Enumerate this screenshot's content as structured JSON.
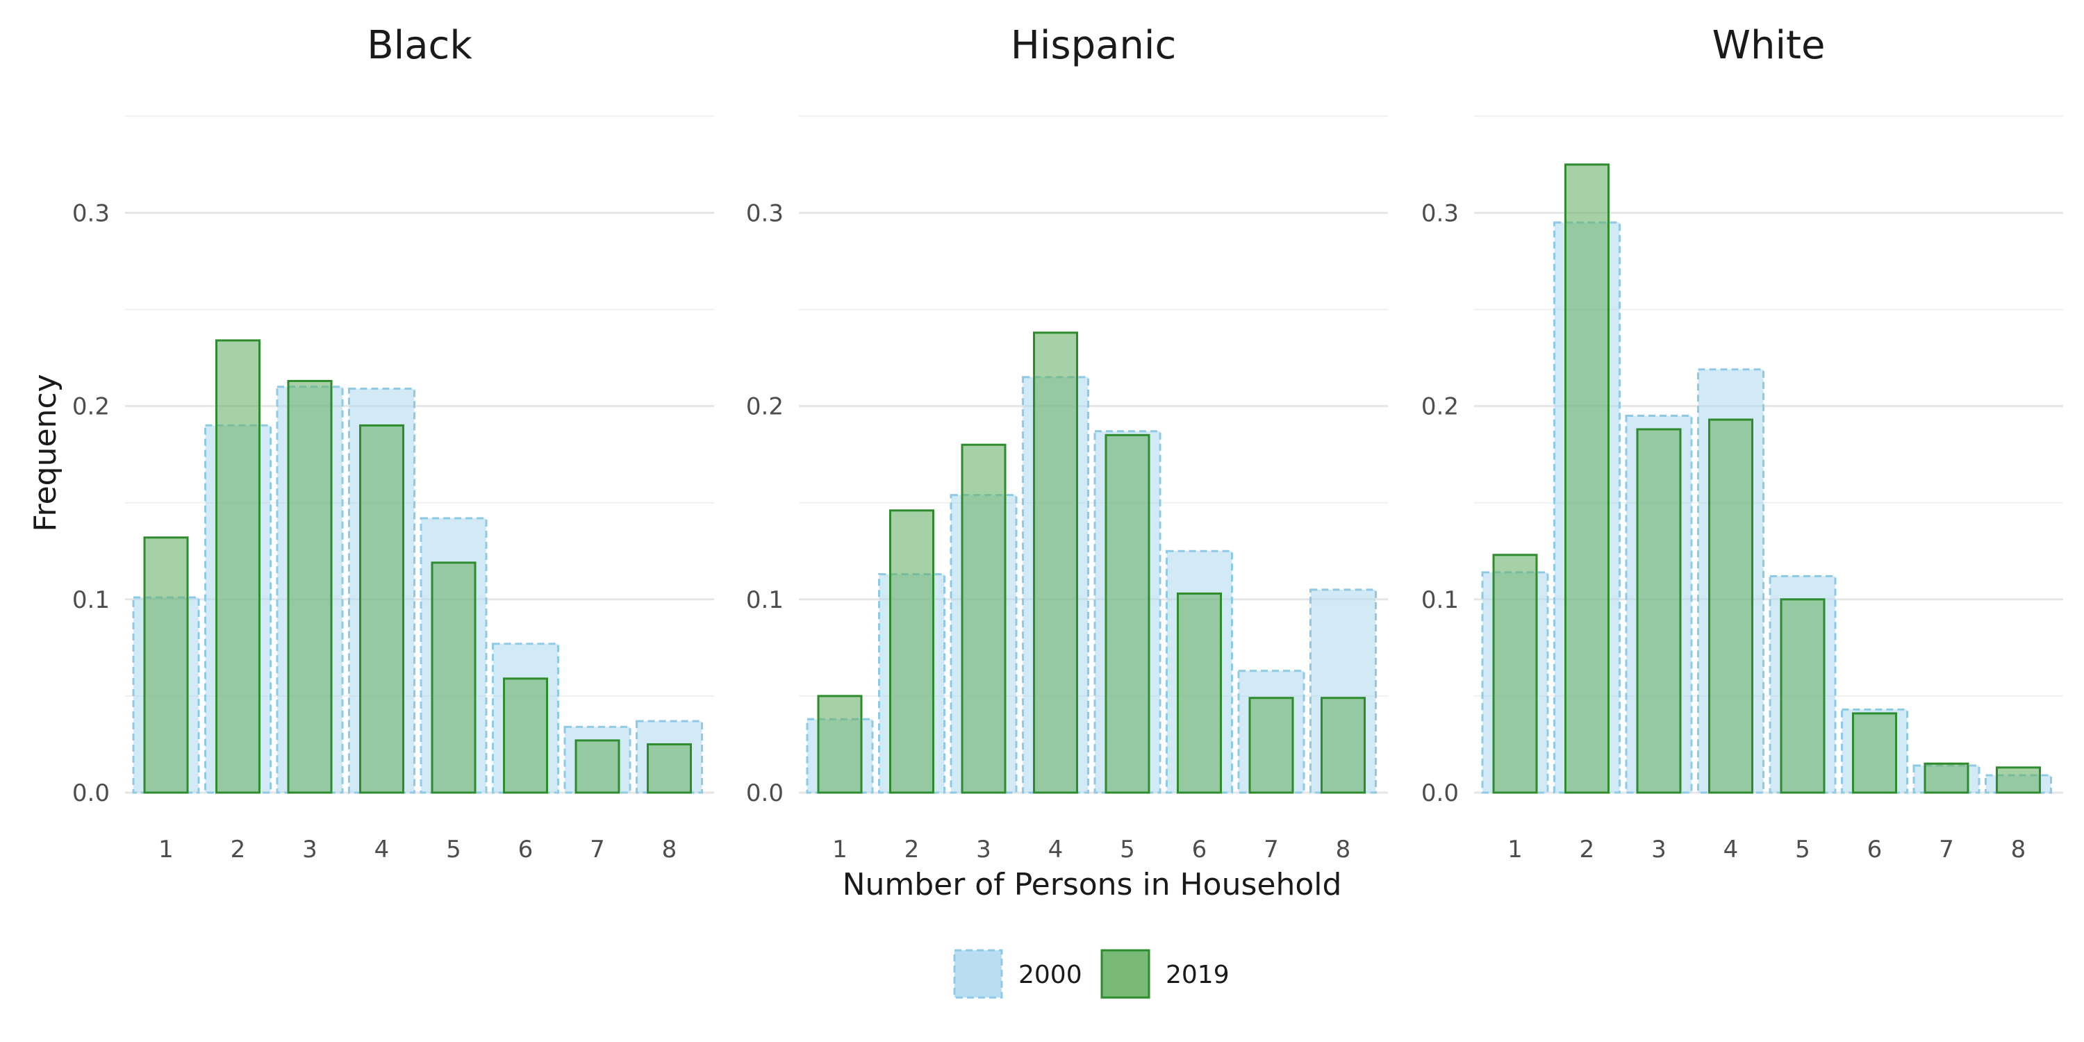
{
  "chart_data": {
    "type": "bar",
    "xlabel": "Number of Persons in Household",
    "ylabel": "Frequency",
    "categories": [
      "1",
      "2",
      "3",
      "4",
      "5",
      "6",
      "7",
      "8"
    ],
    "ylim": [
      0,
      0.35
    ],
    "yticks": [
      "0.0",
      "0.1",
      "0.2",
      "0.3"
    ],
    "grid": true,
    "legend_position": "bottom",
    "colors": {
      "2000_fill": "#add8ee",
      "2000_border": "#8ecae6",
      "2019_fill": "#6ab26a",
      "2019_border": "#2e8b2e"
    },
    "legend": [
      "2000",
      "2019"
    ],
    "panels": [
      {
        "title": "Black",
        "series": [
          {
            "name": "2000",
            "values": [
              0.101,
              0.19,
              0.21,
              0.209,
              0.142,
              0.077,
              0.034,
              0.037
            ]
          },
          {
            "name": "2019",
            "values": [
              0.132,
              0.234,
              0.213,
              0.19,
              0.119,
              0.059,
              0.027,
              0.025
            ]
          }
        ]
      },
      {
        "title": "Hispanic",
        "series": [
          {
            "name": "2000",
            "values": [
              0.038,
              0.113,
              0.154,
              0.215,
              0.187,
              0.125,
              0.063,
              0.105
            ]
          },
          {
            "name": "2019",
            "values": [
              0.05,
              0.146,
              0.18,
              0.238,
              0.185,
              0.103,
              0.049,
              0.049
            ]
          }
        ]
      },
      {
        "title": "White",
        "series": [
          {
            "name": "2000",
            "values": [
              0.114,
              0.295,
              0.195,
              0.219,
              0.112,
              0.043,
              0.014,
              0.009
            ]
          },
          {
            "name": "2019",
            "values": [
              0.123,
              0.325,
              0.188,
              0.193,
              0.1,
              0.041,
              0.015,
              0.013
            ]
          }
        ]
      }
    ]
  }
}
